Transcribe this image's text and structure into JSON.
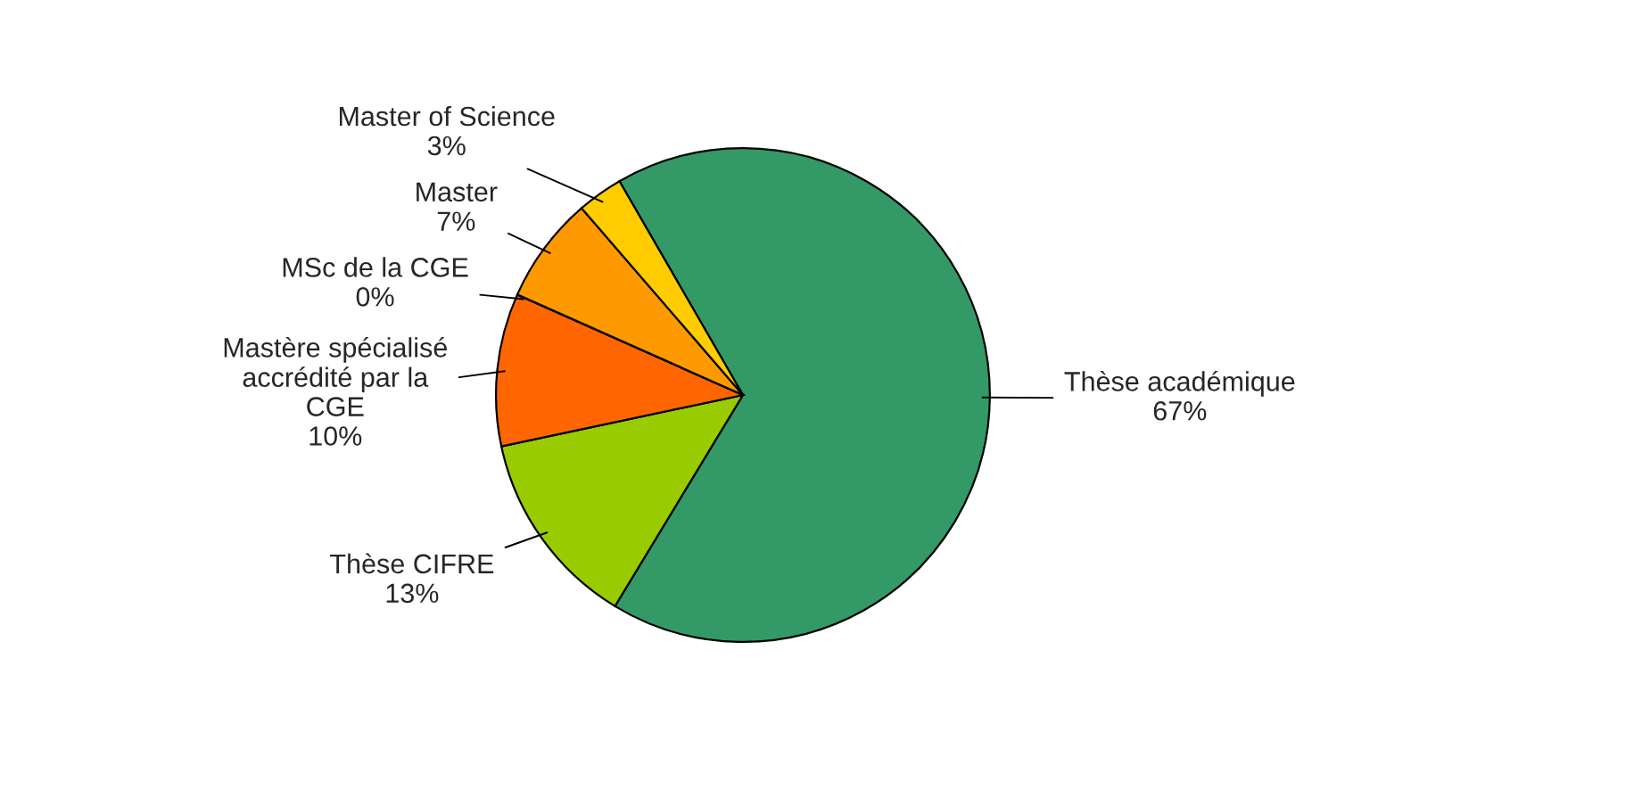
{
  "chart_data": {
    "type": "pie",
    "categories": [
      "Thèse académique",
      "Thèse CIFRE",
      "Mastère spécialisé\naccrédité par la\nCGE",
      "MSc de la CGE",
      "Master",
      "Master of Science"
    ],
    "values": [
      67,
      13,
      10,
      0,
      7,
      3
    ],
    "value_labels": [
      "67%",
      "13%",
      "10%",
      "0%",
      "7%",
      "3%"
    ],
    "colors": [
      "#339966",
      "#99cc00",
      "#ff6600",
      "#ff8000",
      "#ff9900",
      "#ffcc00"
    ]
  }
}
